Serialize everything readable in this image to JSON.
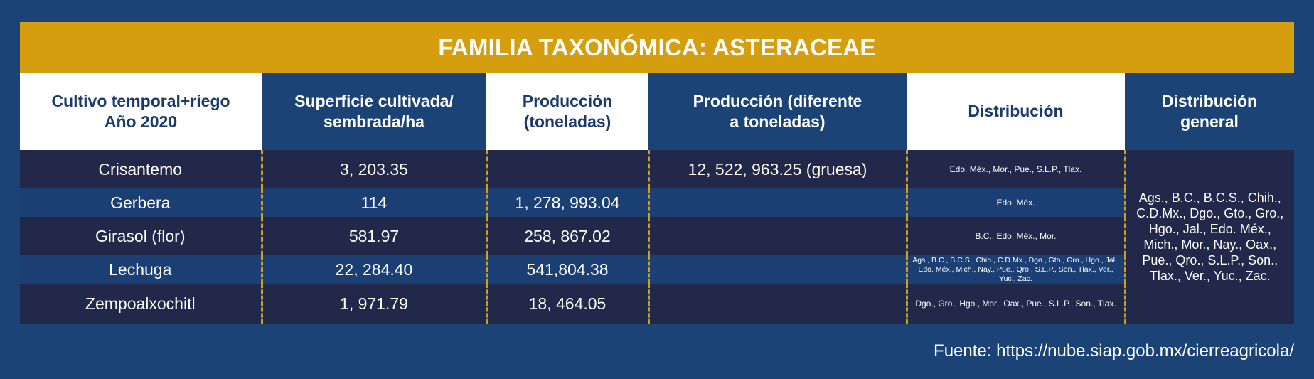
{
  "title": "FAMILIA TAXONÓMICA: ASTERACEAE",
  "headers": [
    "Cultivo temporal+riego\nAño 2020",
    "Superficie cultivada/\nsembrada/ha",
    "Producción\n(toneladas)",
    "Producción (diferente\na toneladas)",
    "Distribución",
    "Distribución\ngeneral"
  ],
  "rows": [
    {
      "cultivo": "Crisantemo",
      "superficie": "3, 203.35",
      "produccion": "",
      "produccion_otro": "12, 522, 963.25 (gruesa)",
      "distribucion": "Edo. Méx., Mor., Pue., S.L.P., Tlax."
    },
    {
      "cultivo": "Gerbera",
      "superficie": "114",
      "produccion": "1, 278, 993.04",
      "produccion_otro": "",
      "distribucion": "Edo. Méx."
    },
    {
      "cultivo": "Girasol (flor)",
      "superficie": "581.97",
      "produccion": "258, 867.02",
      "produccion_otro": "",
      "distribucion": "B.C., Edo. Méx., Mor."
    },
    {
      "cultivo": "Lechuga",
      "superficie": "22, 284.40",
      "produccion": "541,804.38",
      "produccion_otro": "",
      "distribucion": "Ags., B.C., B.C.S., Chih., C.D.Mx., Dgo., Gto., Gro., Hgo., Jal., Edo. Méx., Mich., Nay., Pue., Qro., S.L.P., Son., Tlax., Ver., Yuc., Zac."
    },
    {
      "cultivo": "Zempoalxochitl",
      "superficie": "1, 971.79",
      "produccion": "18, 464.05",
      "produccion_otro": "",
      "distribucion": "Dgo., Gro., Hgo., Mor., Oax., Pue., S.L.P., Son., Tlax."
    }
  ],
  "distribucion_general": "Ags., B.C., B.C.S., Chih., C.D.Mx., Dgo., Gto., Gro., Hgo., Jal., Edo. Méx., Mich., Mor., Nay., Oax., Pue., Qro., S.L.P., Son., Tlax., Ver., Yuc., Zac.",
  "source": "Fuente: https://nube.siap.gob.mx/cierreagricola/",
  "colors": {
    "background": "#1c4376",
    "title_bar": "#d49e0f",
    "row_dark": "#21284a",
    "row_blue": "#1b3f73",
    "header_text_dark": "#1b3a6b",
    "separator": "#d49e0f"
  }
}
